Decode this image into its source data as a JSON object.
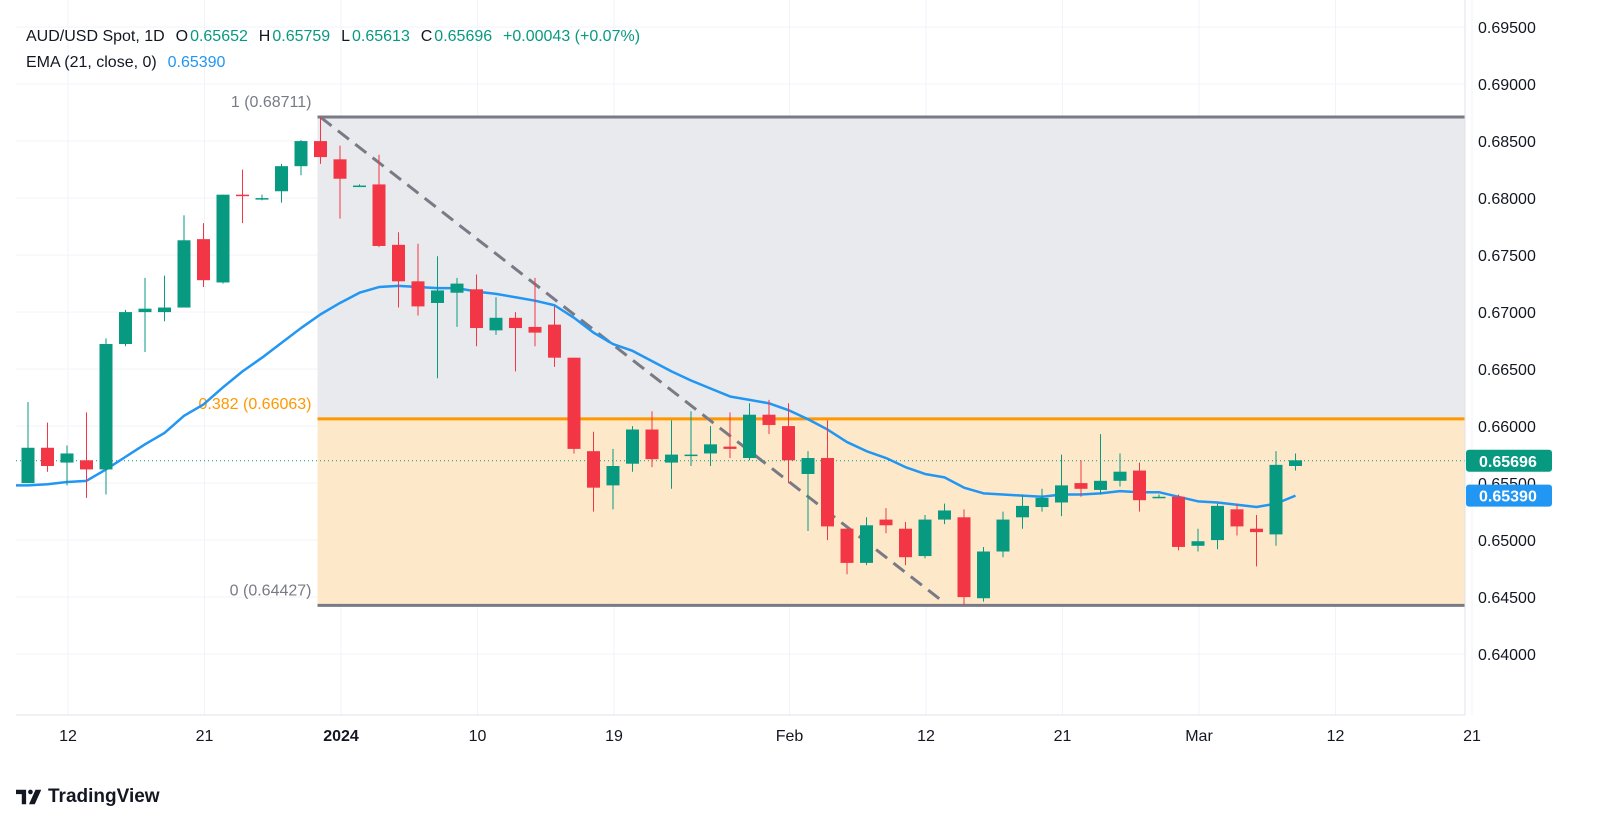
{
  "header": {
    "symbol": "AUD/USD Spot, 1D",
    "open_label": "O",
    "open": "0.65652",
    "high_label": "H",
    "high": "0.65759",
    "low_label": "L",
    "low": "0.65613",
    "close_label": "C",
    "close": "0.65696",
    "change": "+0.00043 (+0.07%)",
    "ema_label": "EMA (21, close, 0)",
    "ema_value": "0.65390"
  },
  "branding": {
    "name": "TradingView"
  },
  "chart_data": {
    "type": "candlestick",
    "ylim": [
      0.6355,
      0.6965
    ],
    "price_ticks": [
      "0.69500",
      "0.69000",
      "0.68500",
      "0.68000",
      "0.67500",
      "0.67000",
      "0.66500",
      "0.66000",
      "0.65500",
      "0.65000",
      "0.64500",
      "0.64000"
    ],
    "x_tick_labels": [
      {
        "label": "12",
        "index": 2
      },
      {
        "label": "21",
        "index": 9
      },
      {
        "label": "2024",
        "index": 16
      },
      {
        "label": "10",
        "index": 23
      },
      {
        "label": "19",
        "index": 30
      },
      {
        "label": "Feb",
        "index": 39
      },
      {
        "label": "12",
        "index": 46
      },
      {
        "label": "21",
        "index": 53
      },
      {
        "label": "Mar",
        "index": 60
      },
      {
        "label": "12",
        "index": 67
      },
      {
        "label": "21",
        "index": 74
      }
    ],
    "candles": [
      {
        "o": 0.655,
        "h": 0.6621,
        "l": 0.655,
        "c": 0.6581
      },
      {
        "o": 0.6581,
        "h": 0.6603,
        "l": 0.656,
        "c": 0.6565
      },
      {
        "o": 0.6568,
        "h": 0.6583,
        "l": 0.6548,
        "c": 0.6576
      },
      {
        "o": 0.657,
        "h": 0.6612,
        "l": 0.6537,
        "c": 0.6562
      },
      {
        "o": 0.6562,
        "h": 0.6677,
        "l": 0.654,
        "c": 0.6672
      },
      {
        "o": 0.6672,
        "h": 0.6702,
        "l": 0.667,
        "c": 0.67
      },
      {
        "o": 0.67,
        "h": 0.673,
        "l": 0.6665,
        "c": 0.6703
      },
      {
        "o": 0.67,
        "h": 0.6732,
        "l": 0.6692,
        "c": 0.6704
      },
      {
        "o": 0.6704,
        "h": 0.6785,
        "l": 0.6704,
        "c": 0.6763
      },
      {
        "o": 0.6764,
        "h": 0.6778,
        "l": 0.6722,
        "c": 0.6728
      },
      {
        "o": 0.6726,
        "h": 0.6803,
        "l": 0.6725,
        "c": 0.6803
      },
      {
        "o": 0.6803,
        "h": 0.6825,
        "l": 0.6778,
        "c": 0.6802
      },
      {
        "o": 0.68,
        "h": 0.6803,
        "l": 0.6798,
        "c": 0.68
      },
      {
        "o": 0.6806,
        "h": 0.683,
        "l": 0.6796,
        "c": 0.6828
      },
      {
        "o": 0.6828,
        "h": 0.6851,
        "l": 0.682,
        "c": 0.685
      },
      {
        "o": 0.685,
        "h": 0.6871,
        "l": 0.683,
        "c": 0.6836
      },
      {
        "o": 0.6834,
        "h": 0.6846,
        "l": 0.6782,
        "c": 0.6817
      },
      {
        "o": 0.6811,
        "h": 0.6812,
        "l": 0.681,
        "c": 0.6811
      },
      {
        "o": 0.6812,
        "h": 0.6838,
        "l": 0.6757,
        "c": 0.6758
      },
      {
        "o": 0.6759,
        "h": 0.677,
        "l": 0.6704,
        "c": 0.6727
      },
      {
        "o": 0.6727,
        "h": 0.676,
        "l": 0.6697,
        "c": 0.6705
      },
      {
        "o": 0.6708,
        "h": 0.6749,
        "l": 0.6642,
        "c": 0.6719
      },
      {
        "o": 0.6717,
        "h": 0.673,
        "l": 0.6687,
        "c": 0.6725
      },
      {
        "o": 0.672,
        "h": 0.6733,
        "l": 0.667,
        "c": 0.6686
      },
      {
        "o": 0.6684,
        "h": 0.6713,
        "l": 0.668,
        "c": 0.6695
      },
      {
        "o": 0.6695,
        "h": 0.67,
        "l": 0.6648,
        "c": 0.6686
      },
      {
        "o": 0.6687,
        "h": 0.673,
        "l": 0.667,
        "c": 0.6682
      },
      {
        "o": 0.6689,
        "h": 0.6705,
        "l": 0.6652,
        "c": 0.666
      },
      {
        "o": 0.666,
        "h": 0.666,
        "l": 0.6576,
        "c": 0.658
      },
      {
        "o": 0.6578,
        "h": 0.6595,
        "l": 0.6525,
        "c": 0.6546
      },
      {
        "o": 0.6548,
        "h": 0.658,
        "l": 0.6527,
        "c": 0.6565
      },
      {
        "o": 0.6567,
        "h": 0.66,
        "l": 0.656,
        "c": 0.6597
      },
      {
        "o": 0.6597,
        "h": 0.6613,
        "l": 0.6564,
        "c": 0.6571
      },
      {
        "o": 0.6568,
        "h": 0.6605,
        "l": 0.6545,
        "c": 0.6575
      },
      {
        "o": 0.6575,
        "h": 0.6613,
        "l": 0.6565,
        "c": 0.6575
      },
      {
        "o": 0.6576,
        "h": 0.66,
        "l": 0.6565,
        "c": 0.6584
      },
      {
        "o": 0.6582,
        "h": 0.6612,
        "l": 0.6572,
        "c": 0.658
      },
      {
        "o": 0.6572,
        "h": 0.662,
        "l": 0.657,
        "c": 0.661
      },
      {
        "o": 0.661,
        "h": 0.6623,
        "l": 0.6593,
        "c": 0.6601
      },
      {
        "o": 0.66,
        "h": 0.662,
        "l": 0.655,
        "c": 0.657
      },
      {
        "o": 0.6558,
        "h": 0.6578,
        "l": 0.6508,
        "c": 0.6572
      },
      {
        "o": 0.6572,
        "h": 0.6605,
        "l": 0.65,
        "c": 0.6512
      },
      {
        "o": 0.651,
        "h": 0.651,
        "l": 0.647,
        "c": 0.648
      },
      {
        "o": 0.648,
        "h": 0.652,
        "l": 0.6478,
        "c": 0.6513
      },
      {
        "o": 0.6518,
        "h": 0.6528,
        "l": 0.6506,
        "c": 0.6513
      },
      {
        "o": 0.651,
        "h": 0.6516,
        "l": 0.6478,
        "c": 0.6485
      },
      {
        "o": 0.6486,
        "h": 0.6522,
        "l": 0.6484,
        "c": 0.6518
      },
      {
        "o": 0.6518,
        "h": 0.6532,
        "l": 0.6514,
        "c": 0.6526
      },
      {
        "o": 0.652,
        "h": 0.6527,
        "l": 0.6443,
        "c": 0.645
      },
      {
        "o": 0.6449,
        "h": 0.6494,
        "l": 0.6446,
        "c": 0.649
      },
      {
        "o": 0.649,
        "h": 0.6525,
        "l": 0.6485,
        "c": 0.6518
      },
      {
        "o": 0.652,
        "h": 0.654,
        "l": 0.651,
        "c": 0.653
      },
      {
        "o": 0.6529,
        "h": 0.6545,
        "l": 0.6525,
        "c": 0.6537
      },
      {
        "o": 0.6533,
        "h": 0.6575,
        "l": 0.6521,
        "c": 0.6548
      },
      {
        "o": 0.655,
        "h": 0.657,
        "l": 0.6538,
        "c": 0.6545
      },
      {
        "o": 0.6544,
        "h": 0.6593,
        "l": 0.654,
        "c": 0.6552
      },
      {
        "o": 0.6552,
        "h": 0.6576,
        "l": 0.6547,
        "c": 0.656
      },
      {
        "o": 0.6561,
        "h": 0.6568,
        "l": 0.6525,
        "c": 0.6535
      },
      {
        "o": 0.6538,
        "h": 0.654,
        "l": 0.6537,
        "c": 0.6538
      },
      {
        "o": 0.6538,
        "h": 0.654,
        "l": 0.6491,
        "c": 0.6494
      },
      {
        "o": 0.6495,
        "h": 0.651,
        "l": 0.649,
        "c": 0.6499
      },
      {
        "o": 0.65,
        "h": 0.6532,
        "l": 0.6492,
        "c": 0.653
      },
      {
        "o": 0.6527,
        "h": 0.6532,
        "l": 0.6504,
        "c": 0.6512
      },
      {
        "o": 0.651,
        "h": 0.6522,
        "l": 0.6477,
        "c": 0.6507
      },
      {
        "o": 0.6505,
        "h": 0.6578,
        "l": 0.6495,
        "c": 0.6566
      },
      {
        "o": 0.6565,
        "h": 0.6576,
        "l": 0.6561,
        "c": 0.657
      }
    ],
    "ema": [
      0.6548,
      0.6549,
      0.6551,
      0.6552,
      0.6562,
      0.6573,
      0.6584,
      0.6594,
      0.6609,
      0.6619,
      0.6634,
      0.6648,
      0.666,
      0.6673,
      0.6686,
      0.6698,
      0.6708,
      0.6717,
      0.6722,
      0.6723,
      0.6722,
      0.6721,
      0.6721,
      0.6718,
      0.6716,
      0.6713,
      0.671,
      0.6706,
      0.6695,
      0.6682,
      0.6672,
      0.6666,
      0.6657,
      0.6648,
      0.664,
      0.6633,
      0.6626,
      0.6623,
      0.662,
      0.6614,
      0.6606,
      0.6597,
      0.6586,
      0.6578,
      0.6572,
      0.6564,
      0.6558,
      0.6555,
      0.6546,
      0.6541,
      0.654,
      0.6539,
      0.6538,
      0.654,
      0.654,
      0.6541,
      0.6543,
      0.6542,
      0.6542,
      0.6538,
      0.6534,
      0.6533,
      0.6531,
      0.6529,
      0.6532,
      0.6539
    ],
    "fib": {
      "high": 0.68711,
      "low": 0.64427,
      "mid": 0.66063,
      "high_label": "1 (0.68711)",
      "mid_label": "0.382 (0.66063)",
      "low_label": "0 (0.64427)",
      "start_index": 15
    },
    "trendline": {
      "from_index": 15,
      "from_price": 0.6871,
      "to_index": 47,
      "to_price": 0.6445
    },
    "last_price": {
      "value": 0.65696,
      "label": "0.65696"
    },
    "ema_last": {
      "value": 0.6539,
      "label": "0.65390"
    },
    "colors": {
      "up": "#089981",
      "down": "#f23645",
      "ema": "#2196f3",
      "fib_mid": "#ff9800",
      "fib_border": "#787b86",
      "zone_upper": "#e9eaed",
      "zone_lower": "#fde9c9",
      "trend": "#787b86",
      "grid": "#f0f3fa",
      "axis_text": "#131722"
    }
  }
}
